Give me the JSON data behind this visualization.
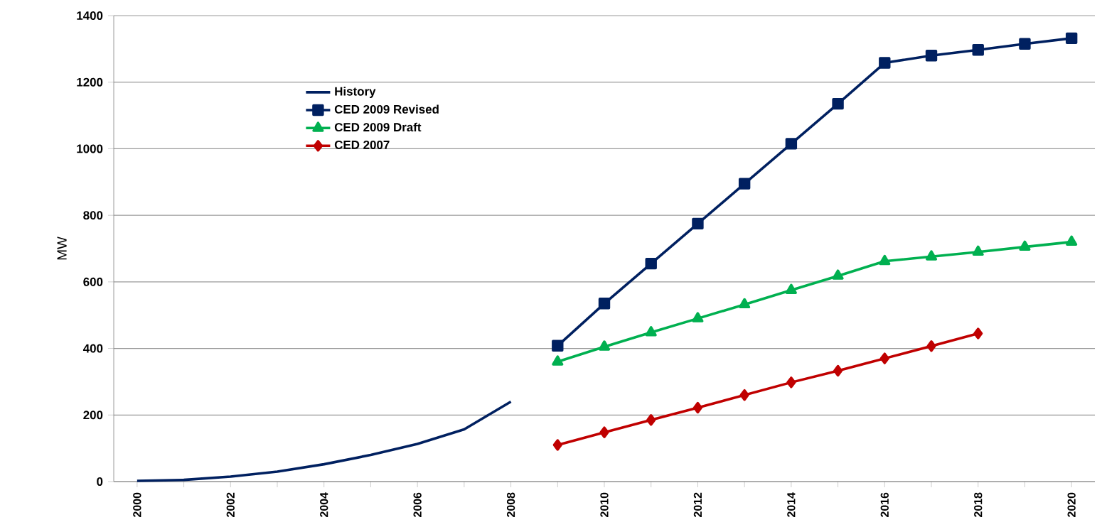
{
  "chart_data": {
    "type": "line",
    "ylabel": "MW",
    "categories": [
      "2000",
      null,
      "2002",
      null,
      "2004",
      null,
      "2006",
      null,
      "2008",
      null,
      "2010",
      null,
      "2012",
      null,
      "2014",
      null,
      "2016",
      null,
      "2018",
      null,
      "2020"
    ],
    "series": [
      {
        "name": "History",
        "color": "#002060",
        "marker": "none",
        "values": [
          2,
          5,
          15,
          30,
          52,
          80,
          113,
          157,
          240,
          null,
          null,
          null,
          null,
          null,
          null,
          null,
          null,
          null,
          null,
          null,
          null
        ]
      },
      {
        "name": "CED 2009 Revised",
        "color": "#002060",
        "marker": "square",
        "values": [
          null,
          null,
          null,
          null,
          null,
          null,
          null,
          null,
          null,
          408,
          535,
          655,
          775,
          895,
          1015,
          1135,
          1258,
          1280,
          1297,
          1315,
          1332
        ]
      },
      {
        "name": "CED 2009 Draft",
        "color": "#00b050",
        "marker": "triangle",
        "values": [
          null,
          null,
          null,
          null,
          null,
          null,
          null,
          null,
          null,
          360,
          405,
          448,
          490,
          532,
          575,
          618,
          662,
          676,
          690,
          705,
          720
        ]
      },
      {
        "name": "CED 2007",
        "color": "#c00000",
        "marker": "diamond",
        "values": [
          null,
          null,
          null,
          null,
          null,
          null,
          null,
          null,
          null,
          110,
          148,
          185,
          222,
          260,
          298,
          333,
          370,
          407,
          445,
          null,
          null
        ]
      }
    ],
    "ylim": [
      0,
      1400
    ],
    "yticks": [
      0,
      200,
      400,
      600,
      800,
      1000,
      1200,
      1400
    ],
    "grid": "y",
    "legend": "top left",
    "line_style": "solid"
  }
}
